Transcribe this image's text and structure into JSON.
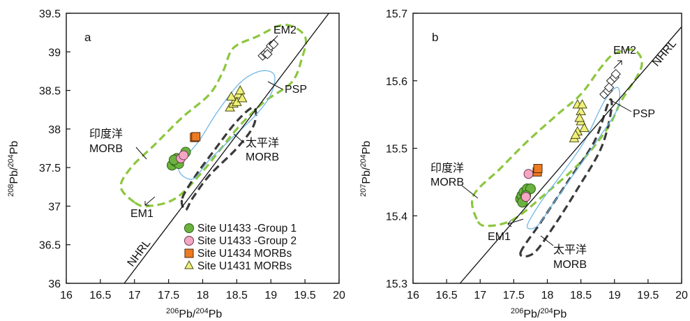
{
  "figure": {
    "legend": [
      {
        "label": "Site U1433 -Group 1",
        "marker": "circle",
        "color": "#6bb33e",
        "stroke": "#2e5e1a"
      },
      {
        "label": "Site U1433 -Group 2",
        "marker": "circle",
        "color": "#f4a6c4",
        "stroke": "#6b3b4e"
      },
      {
        "label": "Site U1434 MORBs",
        "marker": "square",
        "color": "#ee7a22",
        "stroke": "#4a2a10"
      },
      {
        "label": "Site U1431 MORBs",
        "marker": "triangle",
        "color": "#eef07a",
        "stroke": "#4a4a18"
      }
    ],
    "colors": {
      "indian_field": "#8cc63f",
      "pacific_field": "#3a3a3a",
      "psp_field": "#6fb7e6"
    }
  },
  "chart_data": [
    {
      "type": "scatter",
      "panel_label": "a",
      "xlabel": {
        "a": "206",
        "b": "Pb/",
        "c": "204",
        "d": "Pb"
      },
      "ylabel": {
        "a": "208",
        "b": "Pb/",
        "c": "204",
        "d": "Pb"
      },
      "xlim": [
        16,
        20
      ],
      "ylim": [
        36,
        39.5
      ],
      "x_ticks": [
        "16",
        "16.5",
        "17",
        "17.5",
        "18",
        "18.5",
        "19",
        "19.5",
        "20"
      ],
      "y_ticks": [
        "36",
        "36.5",
        "37",
        "37.5",
        "38",
        "38.5",
        "39",
        "39.5"
      ],
      "labels": {
        "em2": "EM2",
        "em1": "EM1",
        "psp": "PSP",
        "indian_1": "印度洋",
        "indian_2": "MORB",
        "pacific_1": "太平洋",
        "pacific_2": "MORB",
        "nhrl": "NHRL"
      },
      "nhrl": [
        [
          16.85,
          36
        ],
        [
          19.85,
          39.5
        ]
      ],
      "series": [
        {
          "name": "Site U1433 -Group 1",
          "points": [
            [
              17.55,
              37.53
            ],
            [
              17.6,
              37.58
            ],
            [
              17.62,
              37.62
            ],
            [
              17.65,
              37.55
            ],
            [
              17.75,
              37.7
            ],
            [
              17.58,
              37.6
            ]
          ]
        },
        {
          "name": "Site U1433 -Group 2",
          "points": [
            [
              17.68,
              37.62
            ],
            [
              17.72,
              37.66
            ]
          ]
        },
        {
          "name": "Site U1434 MORBs",
          "points": [
            [
              17.88,
              37.89
            ],
            [
              17.9,
              37.9
            ]
          ]
        },
        {
          "name": "Site U1431 MORBs",
          "points": [
            [
              18.4,
              38.28
            ],
            [
              18.45,
              38.33
            ],
            [
              18.48,
              38.38
            ],
            [
              18.52,
              38.45
            ],
            [
              18.55,
              38.5
            ],
            [
              18.5,
              38.35
            ],
            [
              18.42,
              38.42
            ],
            [
              18.58,
              38.4
            ]
          ]
        },
        {
          "name": "EM2",
          "points": [
            [
              18.88,
              38.95
            ],
            [
              18.92,
              38.98
            ],
            [
              18.96,
              39.02
            ],
            [
              19.0,
              39.08
            ],
            [
              19.04,
              39.1
            ],
            [
              18.95,
              38.97
            ]
          ]
        }
      ],
      "fields": {
        "indian": [
          [
            17.0,
            37.05
          ],
          [
            16.8,
            37.25
          ],
          [
            16.95,
            37.5
          ],
          [
            17.3,
            37.8
          ],
          [
            17.7,
            38.15
          ],
          [
            18.1,
            38.45
          ],
          [
            18.3,
            38.75
          ],
          [
            18.45,
            39.05
          ],
          [
            18.8,
            39.2
          ],
          [
            19.2,
            39.35
          ],
          [
            19.5,
            39.2
          ],
          [
            19.45,
            38.9
          ],
          [
            19.3,
            38.6
          ],
          [
            18.9,
            38.35
          ],
          [
            18.5,
            38.0
          ],
          [
            18.0,
            37.45
          ],
          [
            17.6,
            37.1
          ],
          [
            17.2,
            37.0
          ]
        ],
        "pacific": [
          [
            17.7,
            37.1
          ],
          [
            17.9,
            37.4
          ],
          [
            18.15,
            37.7
          ],
          [
            18.5,
            38.1
          ],
          [
            18.75,
            38.28
          ],
          [
            18.75,
            38.05
          ],
          [
            18.5,
            37.75
          ],
          [
            18.1,
            37.4
          ],
          [
            17.85,
            37.1
          ],
          [
            17.75,
            36.95
          ]
        ],
        "psp": [
          [
            17.65,
            37.5
          ],
          [
            17.95,
            37.85
          ],
          [
            18.2,
            38.2
          ],
          [
            18.55,
            38.6
          ],
          [
            18.85,
            38.75
          ],
          [
            19.05,
            38.7
          ],
          [
            19.0,
            38.45
          ],
          [
            18.8,
            38.2
          ],
          [
            18.45,
            37.9
          ],
          [
            18.1,
            37.6
          ],
          [
            17.85,
            37.35
          ]
        ]
      }
    },
    {
      "type": "scatter",
      "panel_label": "b",
      "xlabel": {
        "a": "206",
        "b": "Pb/",
        "c": "204",
        "d": "Pb"
      },
      "ylabel": {
        "a": "207",
        "b": "Pb/",
        "c": "204",
        "d": "Pb"
      },
      "xlim": [
        16,
        20
      ],
      "ylim": [
        15.3,
        15.7
      ],
      "x_ticks": [
        "16",
        "16.5",
        "17",
        "17.5",
        "18",
        "18.5",
        "19",
        "19.5",
        "20"
      ],
      "y_ticks": [
        "15.3",
        "15.4",
        "15.5",
        "15.6",
        "15.7"
      ],
      "labels": {
        "em2": "EM2",
        "em1": "EM1",
        "psp": "PSP",
        "indian_1": "印度洋",
        "indian_2": "MORB",
        "pacific_1": "太平洋",
        "pacific_2": "MORB",
        "nhrl": "NHRL"
      },
      "nhrl": [
        [
          16.7,
          15.3
        ],
        [
          20,
          15.68
        ]
      ],
      "series": [
        {
          "name": "Site U1433 -Group 1",
          "points": [
            [
              17.6,
              15.425
            ],
            [
              17.62,
              15.43
            ],
            [
              17.65,
              15.435
            ],
            [
              17.7,
              15.44
            ],
            [
              17.75,
              15.44
            ],
            [
              17.68,
              15.43
            ],
            [
              17.63,
              15.42
            ]
          ]
        },
        {
          "name": "Site U1433 -Group 2",
          "points": [
            [
              17.68,
              15.428
            ],
            [
              17.72,
              15.462
            ]
          ]
        },
        {
          "name": "Site U1434 MORBs",
          "points": [
            [
              17.85,
              15.465
            ],
            [
              17.86,
              15.47
            ]
          ]
        },
        {
          "name": "Site U1431 MORBs",
          "points": [
            [
              18.4,
              15.515
            ],
            [
              18.45,
              15.525
            ],
            [
              18.5,
              15.54
            ],
            [
              18.55,
              15.53
            ],
            [
              18.5,
              15.555
            ],
            [
              18.45,
              15.565
            ],
            [
              18.52,
              15.565
            ],
            [
              18.48,
              15.545
            ],
            [
              18.42,
              15.52
            ]
          ]
        },
        {
          "name": "EM2",
          "points": [
            [
              18.85,
              15.58
            ],
            [
              18.9,
              15.585
            ],
            [
              18.95,
              15.6
            ],
            [
              19.0,
              15.605
            ],
            [
              18.92,
              15.59
            ],
            [
              19.02,
              15.61
            ]
          ]
        }
      ],
      "fields": {
        "indian": [
          [
            16.95,
            15.395
          ],
          [
            16.9,
            15.43
          ],
          [
            17.3,
            15.47
          ],
          [
            17.7,
            15.51
          ],
          [
            18.15,
            15.55
          ],
          [
            18.5,
            15.58
          ],
          [
            18.8,
            15.62
          ],
          [
            19.0,
            15.64
          ],
          [
            19.3,
            15.645
          ],
          [
            19.4,
            15.62
          ],
          [
            19.1,
            15.57
          ],
          [
            18.9,
            15.53
          ],
          [
            18.5,
            15.48
          ],
          [
            18.0,
            15.435
          ],
          [
            17.5,
            15.395
          ],
          [
            17.1,
            15.385
          ]
        ],
        "pacific": [
          [
            17.6,
            15.345
          ],
          [
            17.9,
            15.39
          ],
          [
            18.3,
            15.45
          ],
          [
            18.7,
            15.51
          ],
          [
            18.92,
            15.57
          ],
          [
            18.95,
            15.555
          ],
          [
            18.8,
            15.5
          ],
          [
            18.45,
            15.44
          ],
          [
            18.1,
            15.385
          ],
          [
            17.8,
            15.345
          ]
        ],
        "psp": [
          [
            17.7,
            15.385
          ],
          [
            17.9,
            15.42
          ],
          [
            18.2,
            15.46
          ],
          [
            18.55,
            15.51
          ],
          [
            18.85,
            15.57
          ],
          [
            19.05,
            15.59
          ],
          [
            19.05,
            15.56
          ],
          [
            18.8,
            15.52
          ],
          [
            18.45,
            15.47
          ],
          [
            18.1,
            15.42
          ],
          [
            17.85,
            15.385
          ]
        ]
      }
    }
  ]
}
